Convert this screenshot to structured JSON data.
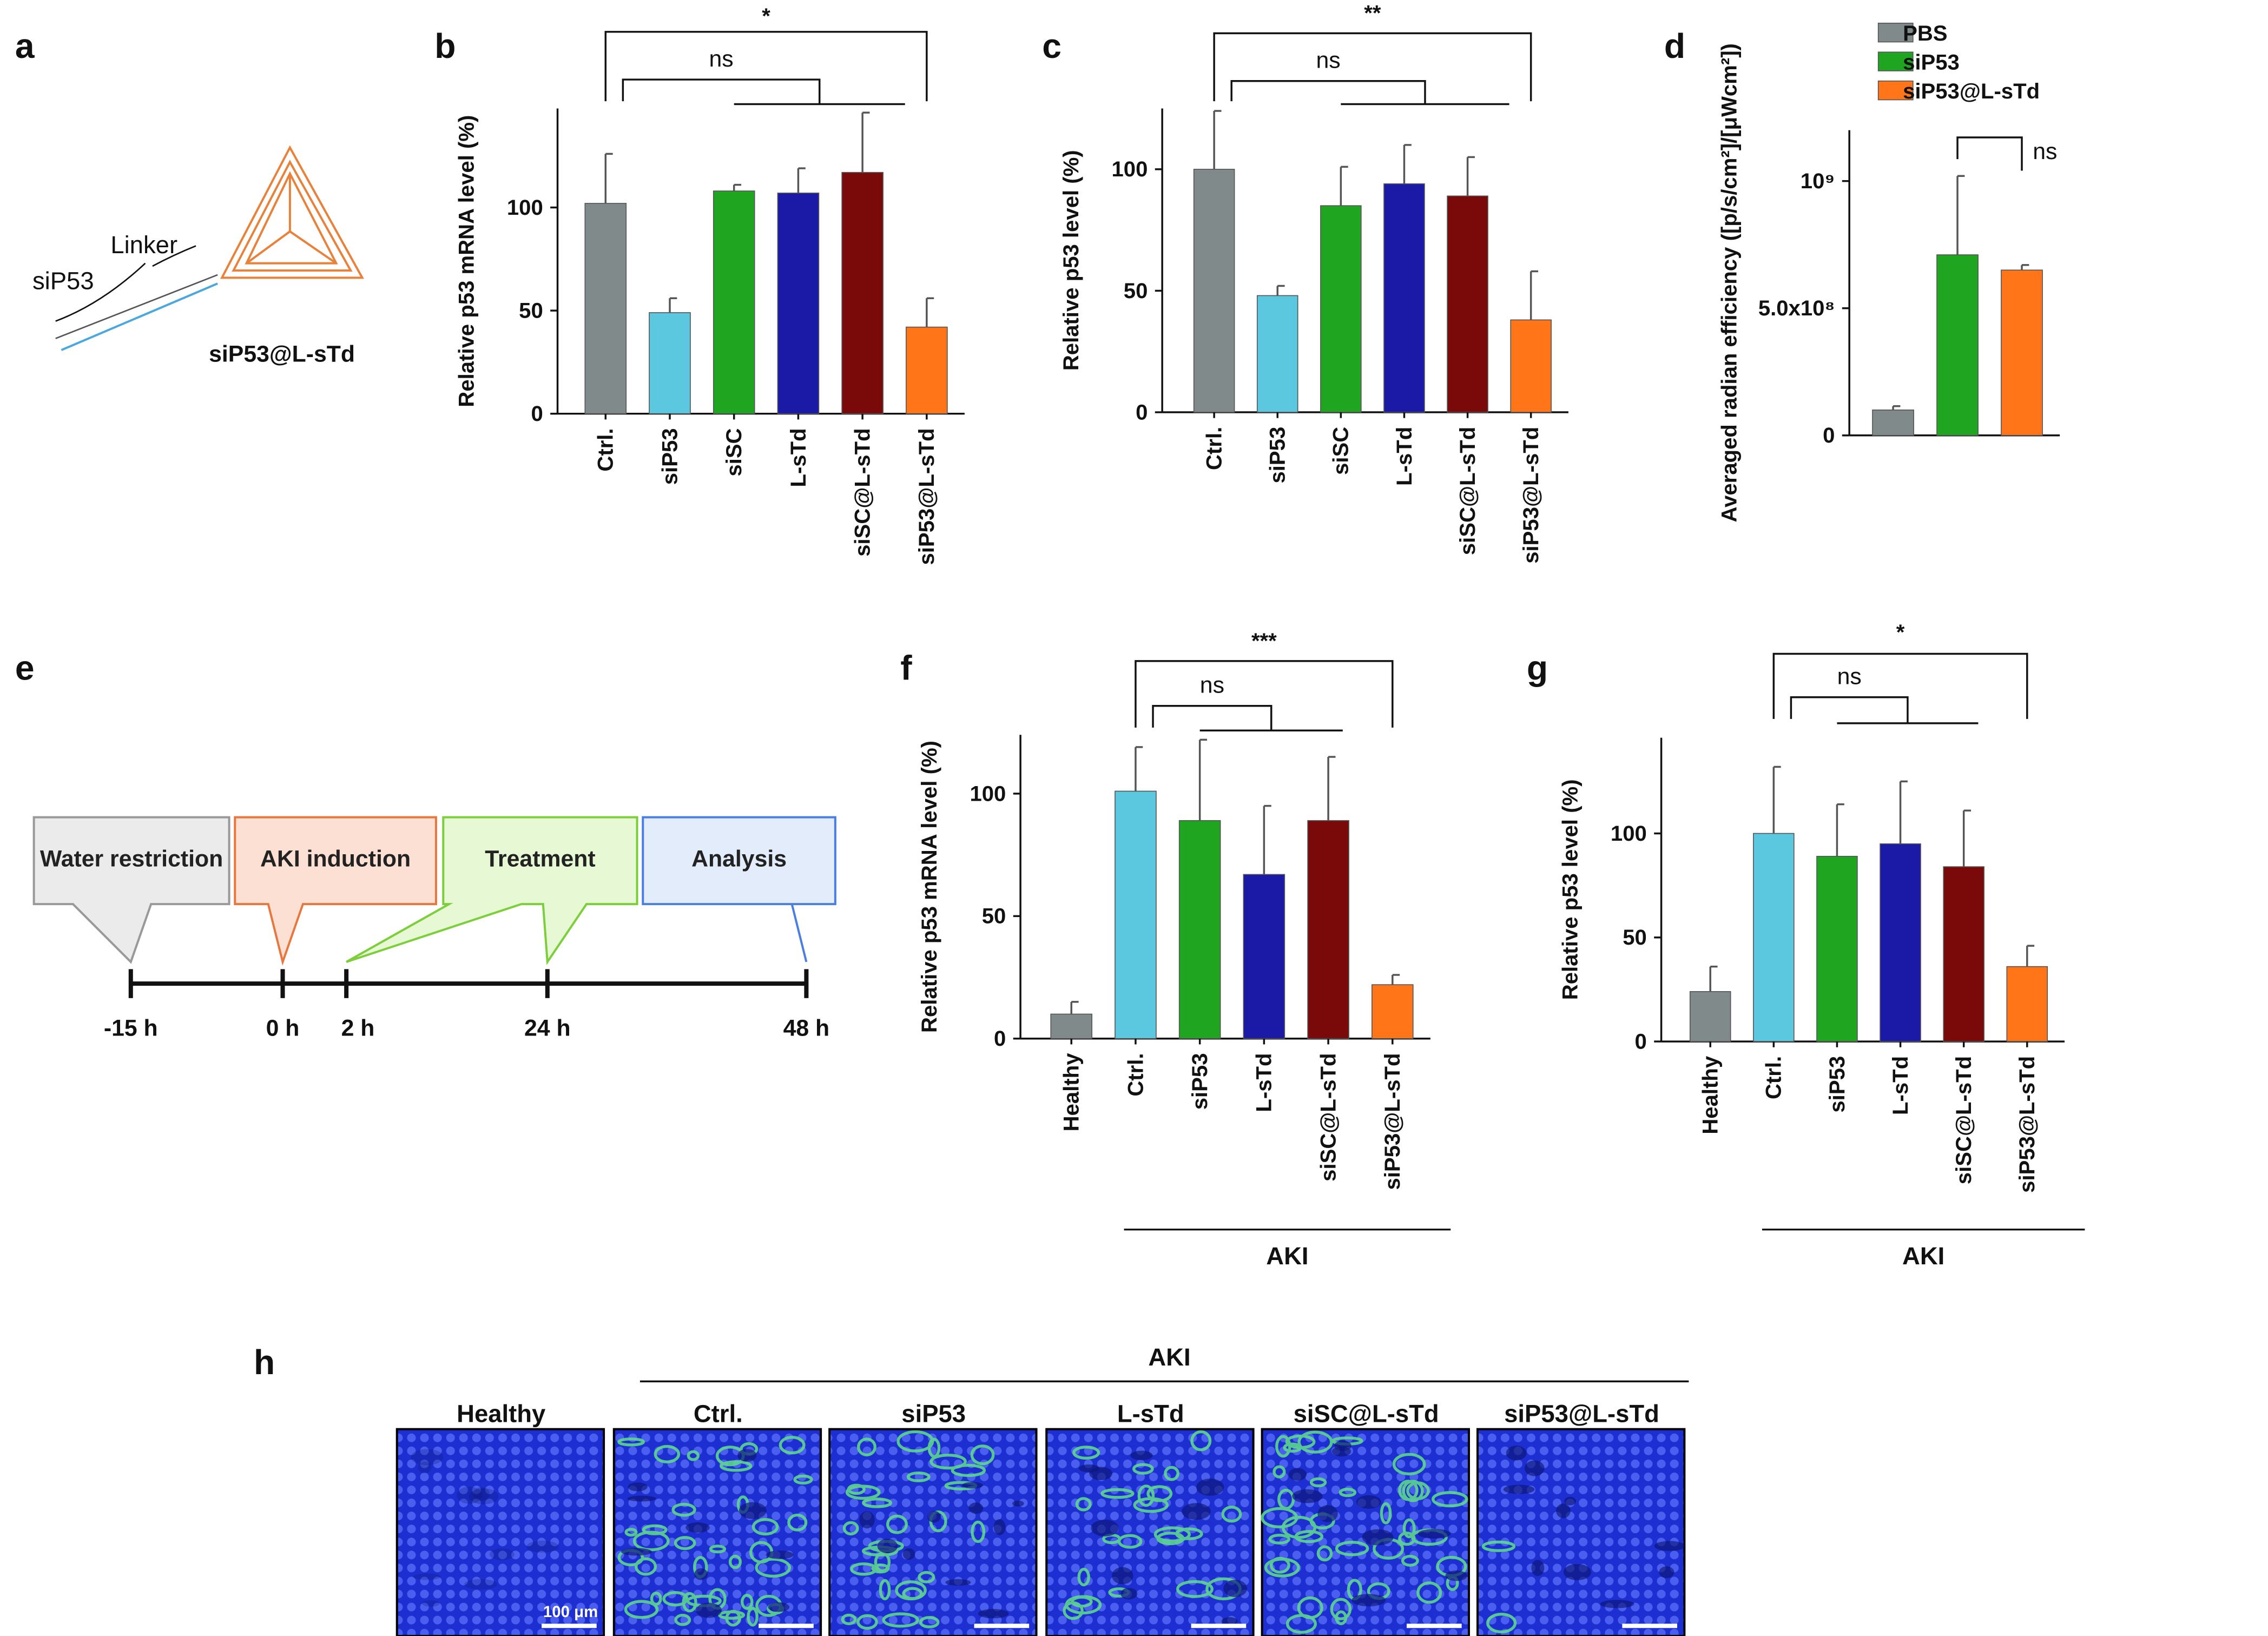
{
  "panel_labels": [
    "a",
    "b",
    "c",
    "d",
    "e",
    "f",
    "g",
    "h"
  ],
  "schematic": {
    "labels": [
      "siP53",
      "Linker",
      "siP53@L-sTd"
    ]
  },
  "timeline": {
    "stages": [
      "Water restriction",
      "AKI induction",
      "Treatment",
      "Analysis"
    ],
    "times": [
      "-15 h",
      "0 h",
      "2 h",
      "24 h",
      "48 h"
    ]
  },
  "chart_data": [
    {
      "type": "bar",
      "y_label": "Relative p53 mRNA level (%)",
      "categories": [
        "Ctrl.",
        "siP53",
        "siSC",
        "L-sTd",
        "siSC@L-sTd",
        "siP53@L-sTd"
      ],
      "values": [
        102,
        49,
        108,
        107,
        117,
        42
      ],
      "errors": [
        24,
        7,
        3,
        12,
        29,
        14
      ],
      "colors": [
        "#808a8a",
        "#5bc8e0",
        "#1fa51f",
        "#1a1aa6",
        "#7a0a0a",
        "#ff7518"
      ],
      "ylim": [
        0,
        148
      ],
      "yticks": [
        0,
        50,
        100
      ],
      "annotations": [
        "*",
        "ns"
      ]
    },
    {
      "type": "bar",
      "y_label": "Relative p53 level (%)",
      "categories": [
        "Ctrl.",
        "siP53",
        "siSC",
        "L-sTd",
        "siSC@L-sTd",
        "siP53@L-sTd"
      ],
      "values": [
        100,
        48,
        85,
        94,
        89,
        38
      ],
      "errors": [
        24,
        4,
        16,
        16,
        16,
        20
      ],
      "colors": [
        "#808a8a",
        "#5bc8e0",
        "#1fa51f",
        "#1a1aa6",
        "#7a0a0a",
        "#ff7518"
      ],
      "ylim": [
        0,
        125
      ],
      "yticks": [
        0,
        50,
        100
      ],
      "annotations": [
        "**",
        "ns"
      ]
    },
    {
      "type": "grouped",
      "y_label": "Averaged radian efficiency ([p/s/cm²]/[μWcm²])",
      "series": [
        {
          "name": "PBS",
          "color": "#808a8a",
          "values": [
            100000000
          ],
          "errors": [
            15000000
          ]
        },
        {
          "name": "siP53",
          "color": "#1fa51f",
          "values": [
            710000000
          ],
          "errors": [
            310000000
          ]
        },
        {
          "name": "siP53@L-sTd",
          "color": "#ff7518",
          "values": [
            650000000
          ],
          "errors": [
            20000000
          ]
        }
      ],
      "ylim": [
        0,
        1200000000
      ],
      "yticks": [
        0,
        {
          "value": 500000000,
          "label": "5.0x10⁸"
        },
        {
          "value": 1000000000,
          "label": "10⁹"
        }
      ],
      "legend": "top",
      "annotations": [
        "ns"
      ]
    },
    {
      "type": "bar",
      "y_label": "Relative p53 mRNA level (%)",
      "categories": [
        "Healthy",
        "Ctrl.",
        "siP53",
        "L-sTd",
        "siSC@L-sTd",
        "siP53@L-sTd"
      ],
      "values": [
        10,
        101,
        89,
        67,
        89,
        22
      ],
      "errors": [
        5,
        18,
        33,
        28,
        26,
        4
      ],
      "colors": [
        "#808a8a",
        "#5bc8e0",
        "#1fa51f",
        "#1a1aa6",
        "#7a0a0a",
        "#ff7518"
      ],
      "ylim": [
        0,
        124
      ],
      "yticks": [
        0,
        50,
        100
      ],
      "annotations": [
        "***",
        "ns"
      ],
      "group_label": "AKI"
    },
    {
      "type": "bar",
      "y_label": "Relative p53 level (%)",
      "categories": [
        "Healthy",
        "Ctrl.",
        "siP53",
        "L-sTd",
        "siSC@L-sTd",
        "siP53@L-sTd"
      ],
      "values": [
        24,
        100,
        89,
        95,
        84,
        36
      ],
      "errors": [
        12,
        32,
        25,
        30,
        27,
        10
      ],
      "colors": [
        "#808a8a",
        "#5bc8e0",
        "#1fa51f",
        "#1a1aa6",
        "#7a0a0a",
        "#ff7518"
      ],
      "ylim": [
        0,
        146
      ],
      "yticks": [
        0,
        50,
        100
      ],
      "annotations": [
        "*",
        "ns"
      ],
      "group_label": "AKI"
    }
  ],
  "images": {
    "group_label": "AKI",
    "titles": [
      "Healthy",
      "Ctrl.",
      "siP53",
      "L-sTd",
      "siSC@L-sTd",
      "siP53@L-sTd"
    ],
    "scale_bar": "100 μm"
  }
}
